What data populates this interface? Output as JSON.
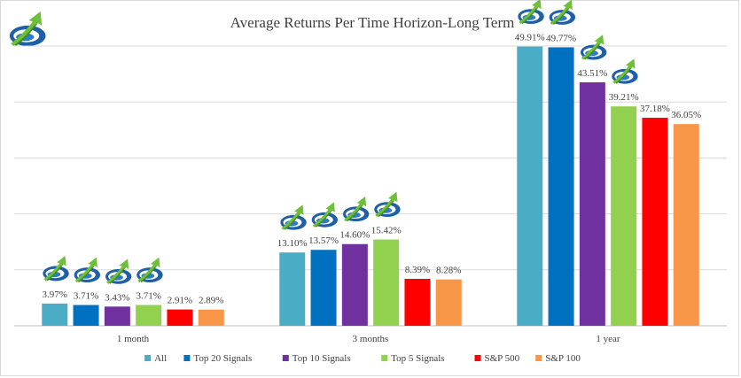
{
  "chart_data": {
    "type": "bar",
    "title": "Average Returns Per Time Horizon-Long Term",
    "categories": [
      "1 month",
      "3 months",
      "1 year"
    ],
    "ylim": [
      0,
      50
    ],
    "grid": true,
    "legend_position": "bottom",
    "series": [
      {
        "name": "All",
        "color": "#4bacc6",
        "values": [
          3.97,
          13.1,
          49.91
        ],
        "labels": [
          "3.97%",
          "13.10%",
          "49.91%"
        ]
      },
      {
        "name": "Top 20 Signals",
        "color": "#0070c0",
        "values": [
          3.71,
          13.57,
          49.77
        ],
        "labels": [
          "3.71%",
          "13.57%",
          "49.77%"
        ]
      },
      {
        "name": "Top 10 Signals",
        "color": "#7030a0",
        "values": [
          3.43,
          14.6,
          43.51
        ],
        "labels": [
          "3.43%",
          "14.60%",
          "43.51%"
        ]
      },
      {
        "name": "Top 5 Signals",
        "color": "#92d050",
        "values": [
          3.71,
          15.42,
          39.21
        ],
        "labels": [
          "3.71%",
          "15.42%",
          "39.21%"
        ]
      },
      {
        "name": "S&P 500",
        "color": "#ff0000",
        "values": [
          2.91,
          8.39,
          37.18
        ],
        "labels": [
          "2.91%",
          "8.39%",
          "37.18%"
        ]
      },
      {
        "name": "S&P 100",
        "color": "#f79646",
        "values": [
          2.89,
          8.28,
          36.05
        ],
        "labels": [
          "2.89%",
          "8.28%",
          "36.05%"
        ]
      }
    ],
    "logo_icons": "growth-arrow-logo-icon"
  }
}
